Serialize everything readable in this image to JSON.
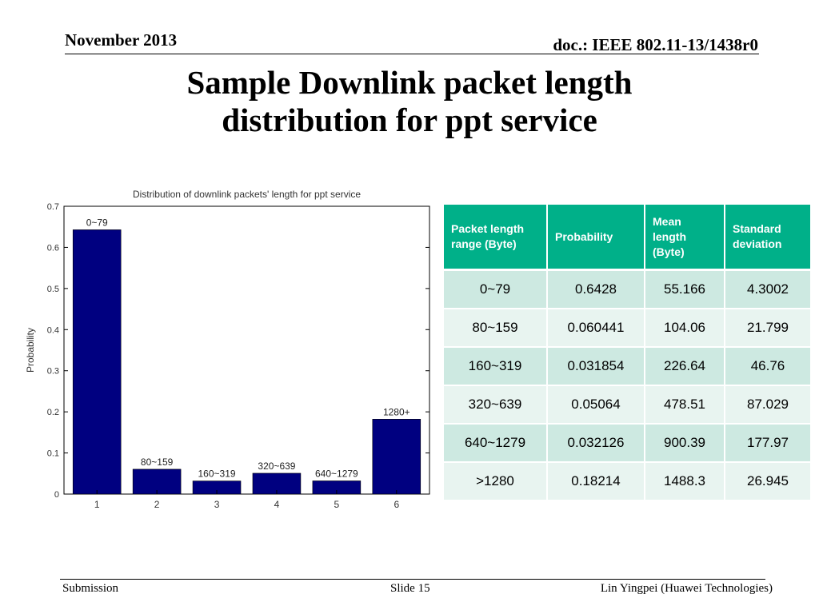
{
  "header": {
    "date": "November 2013",
    "doc_id": "doc.: IEEE 802.11-13/1438r0"
  },
  "title": {
    "line1": "Sample Downlink packet length",
    "line2": "distribution for ppt service"
  },
  "chart_data": {
    "type": "bar",
    "title": "Distribution of downlink packets' length for ppt service",
    "xlabel": "",
    "ylabel": "Probability",
    "categories": [
      "1",
      "2",
      "3",
      "4",
      "5",
      "6"
    ],
    "values": [
      0.6428,
      0.060441,
      0.031854,
      0.05064,
      0.032126,
      0.18214
    ],
    "bar_labels": [
      "0~79",
      "80~159",
      "160~319",
      "320~639",
      "640~1279",
      "1280+"
    ],
    "ylim": [
      0,
      0.7
    ],
    "yticks": [
      "0",
      "0.1",
      "0.2",
      "0.3",
      "0.4",
      "0.5",
      "0.6",
      "0.7"
    ],
    "bar_color": "#000080",
    "grid": false
  },
  "table": {
    "headers": [
      "Packet length range (Byte)",
      "Probability",
      "Mean length (Byte)",
      "Standard deviation"
    ],
    "rows": [
      [
        "0~79",
        "0.6428",
        "55.166",
        "4.3002"
      ],
      [
        "80~159",
        "0.060441",
        "104.06",
        "21.799"
      ],
      [
        "160~319",
        "0.031854",
        "226.64",
        "46.76"
      ],
      [
        "320~639",
        "0.05064",
        "478.51",
        "87.029"
      ],
      [
        "640~1279",
        "0.032126",
        "900.39",
        "177.97"
      ],
      [
        ">1280",
        "0.18214",
        "1488.3",
        "26.945"
      ]
    ],
    "header_color": "#00b089",
    "row_colors": [
      "#cde9e1",
      "#e8f4f0"
    ]
  },
  "footer": {
    "left": "Submission",
    "center": "Slide 15",
    "right": "Lin Yingpei (Huawei Technologies)"
  }
}
